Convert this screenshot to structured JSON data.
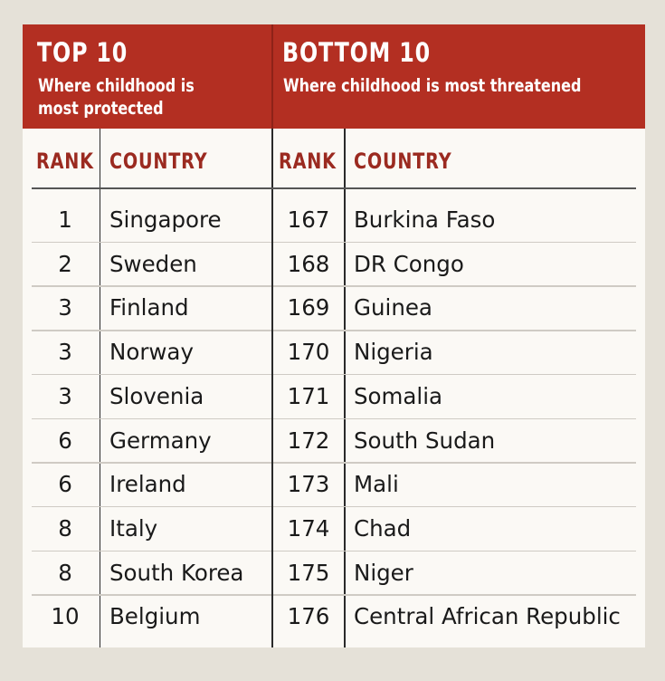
{
  "chart_data": {
    "type": "table",
    "panels": [
      {
        "title": "TOP 10",
        "subtitle_lines": [
          "Where childhood is",
          "most protected"
        ],
        "columns": [
          "RANK",
          "COUNTRY"
        ],
        "rows": [
          {
            "rank": "1",
            "country": "Singapore"
          },
          {
            "rank": "2",
            "country": "Sweden"
          },
          {
            "rank": "3",
            "country": "Finland"
          },
          {
            "rank": "3",
            "country": "Norway"
          },
          {
            "rank": "3",
            "country": "Slovenia"
          },
          {
            "rank": "6",
            "country": "Germany"
          },
          {
            "rank": "6",
            "country": "Ireland"
          },
          {
            "rank": "8",
            "country": "Italy"
          },
          {
            "rank": "8",
            "country": "South Korea"
          },
          {
            "rank": "10",
            "country": "Belgium"
          }
        ]
      },
      {
        "title": "BOTTOM 10",
        "subtitle_lines": [
          "Where childhood is most threatened"
        ],
        "columns": [
          "RANK",
          "COUNTRY"
        ],
        "rows": [
          {
            "rank": "167",
            "country": "Burkina Faso"
          },
          {
            "rank": "168",
            "country": "DR Congo"
          },
          {
            "rank": "169",
            "country": "Guinea"
          },
          {
            "rank": "170",
            "country": "Nigeria"
          },
          {
            "rank": "171",
            "country": "Somalia"
          },
          {
            "rank": "172",
            "country": "South Sudan"
          },
          {
            "rank": "173",
            "country": "Mali"
          },
          {
            "rank": "174",
            "country": "Chad"
          },
          {
            "rank": "175",
            "country": "Niger"
          },
          {
            "rank": "176",
            "country": "Central African Republic"
          }
        ]
      }
    ],
    "colors": {
      "header_bg": "#b32f22",
      "column_header_text": "#9b2a20",
      "body_text": "#1a1a1a",
      "table_bg": "#fbf9f5",
      "page_bg": "#e5e1d8"
    }
  }
}
